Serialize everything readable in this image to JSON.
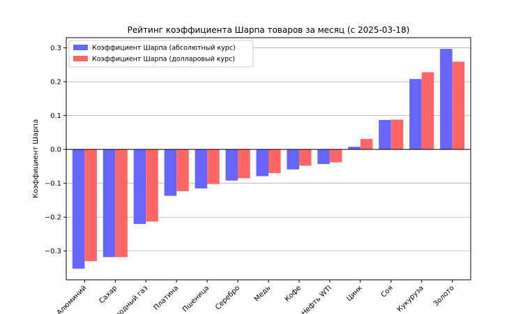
{
  "chart_data": {
    "type": "bar",
    "title": "Рейтинг коэффициента Шарпа товаров за месяц (с 2025-03-18)",
    "xlabel": "",
    "ylabel": "Коэффициент Шарпа",
    "ylim": [
      -0.385,
      0.33
    ],
    "yticks": [
      -0.3,
      -0.2,
      -0.1,
      0.0,
      0.1,
      0.2,
      0.3
    ],
    "ytick_labels": [
      "−0.3",
      "−0.2",
      "−0.1",
      "0.0",
      "0.1",
      "0.2",
      "0.3"
    ],
    "grid": "horizontal",
    "legend_position": "top-left",
    "categories": [
      "Алюминий",
      "Сахар",
      "Природный газ",
      "Платина",
      "Пшеница",
      "Серебро",
      "Медь",
      "Кофе",
      "Нефть WTI",
      "Цинк",
      "Соя",
      "Кукуруза",
      "Золото"
    ],
    "series": [
      {
        "name": "Коэффициент Шарпа (абсолютный курс)",
        "color": "#6666ff",
        "values": [
          -0.352,
          -0.318,
          -0.22,
          -0.137,
          -0.115,
          -0.092,
          -0.079,
          -0.059,
          -0.043,
          0.008,
          0.087,
          0.208,
          0.297
        ]
      },
      {
        "name": "Коэффициент Шарпа (долларовый курс)",
        "color": "#ff6666",
        "values": [
          -0.33,
          -0.318,
          -0.213,
          -0.123,
          -0.102,
          -0.085,
          -0.07,
          -0.048,
          -0.038,
          0.031,
          0.088,
          0.228,
          0.259
        ]
      }
    ]
  }
}
